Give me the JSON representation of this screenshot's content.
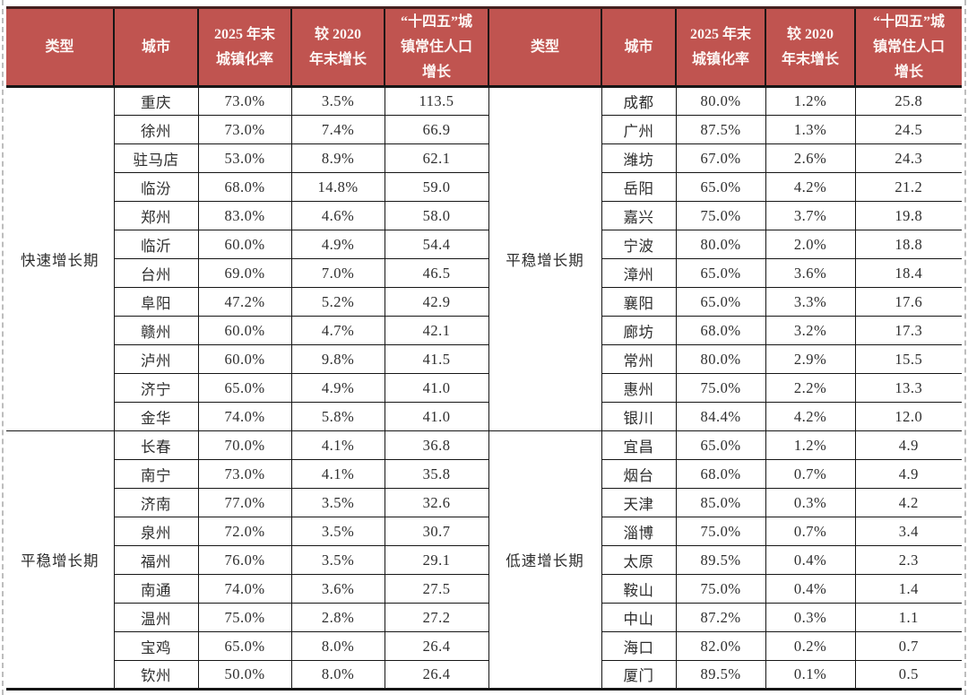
{
  "colors": {
    "header_bg": "#c05450",
    "header_text": "#fdf6f4",
    "border": "#161616",
    "top_rule": "#44201e",
    "body_text": "#2e2e2e",
    "dashed_edge": "#bdbdbd"
  },
  "header": {
    "columns": [
      "类型",
      "城市",
      "2025 年末\n城镇化率",
      "较 2020\n年末增长",
      "“十四五”城\n镇常住人口\n增长"
    ]
  },
  "tables": [
    {
      "side": "left",
      "groups": [
        {
          "type": "快速增长期",
          "rows": [
            [
              "重庆",
              "73.0%",
              "3.5%",
              "113.5"
            ],
            [
              "徐州",
              "73.0%",
              "7.4%",
              "66.9"
            ],
            [
              "驻马店",
              "53.0%",
              "8.9%",
              "62.1"
            ],
            [
              "临汾",
              "68.0%",
              "14.8%",
              "59.0"
            ],
            [
              "郑州",
              "83.0%",
              "4.6%",
              "58.0"
            ],
            [
              "临沂",
              "60.0%",
              "4.9%",
              "54.4"
            ],
            [
              "台州",
              "69.0%",
              "7.0%",
              "46.5"
            ],
            [
              "阜阳",
              "47.2%",
              "5.2%",
              "42.9"
            ],
            [
              "赣州",
              "60.0%",
              "4.7%",
              "42.1"
            ],
            [
              "泸州",
              "60.0%",
              "9.8%",
              "41.5"
            ],
            [
              "济宁",
              "65.0%",
              "4.9%",
              "41.0"
            ],
            [
              "金华",
              "74.0%",
              "5.8%",
              "41.0"
            ]
          ]
        },
        {
          "type": "平稳增长期",
          "rows": [
            [
              "长春",
              "70.0%",
              "4.1%",
              "36.8"
            ],
            [
              "南宁",
              "73.0%",
              "4.1%",
              "35.8"
            ],
            [
              "济南",
              "77.0%",
              "3.5%",
              "32.6"
            ],
            [
              "泉州",
              "72.0%",
              "3.5%",
              "30.7"
            ],
            [
              "福州",
              "76.0%",
              "3.5%",
              "29.1"
            ],
            [
              "南通",
              "74.0%",
              "3.6%",
              "27.5"
            ],
            [
              "温州",
              "75.0%",
              "2.8%",
              "27.2"
            ],
            [
              "宝鸡",
              "65.0%",
              "8.0%",
              "26.4"
            ],
            [
              "钦州",
              "50.0%",
              "8.0%",
              "26.4"
            ]
          ]
        }
      ]
    },
    {
      "side": "right",
      "groups": [
        {
          "type": "平稳增长期",
          "rows": [
            [
              "成都",
              "80.0%",
              "1.2%",
              "25.8"
            ],
            [
              "广州",
              "87.5%",
              "1.3%",
              "24.5"
            ],
            [
              "潍坊",
              "67.0%",
              "2.6%",
              "24.3"
            ],
            [
              "岳阳",
              "65.0%",
              "4.2%",
              "21.2"
            ],
            [
              "嘉兴",
              "75.0%",
              "3.7%",
              "19.8"
            ],
            [
              "宁波",
              "80.0%",
              "2.0%",
              "18.8"
            ],
            [
              "漳州",
              "65.0%",
              "3.6%",
              "18.4"
            ],
            [
              "襄阳",
              "65.0%",
              "3.3%",
              "17.6"
            ],
            [
              "廊坊",
              "68.0%",
              "3.2%",
              "17.3"
            ],
            [
              "常州",
              "80.0%",
              "2.9%",
              "15.5"
            ],
            [
              "惠州",
              "75.0%",
              "2.2%",
              "13.3"
            ],
            [
              "银川",
              "84.4%",
              "4.2%",
              "12.0"
            ]
          ]
        },
        {
          "type": "低速增长期",
          "rows": [
            [
              "宜昌",
              "65.0%",
              "1.2%",
              "4.9"
            ],
            [
              "烟台",
              "68.0%",
              "0.7%",
              "4.9"
            ],
            [
              "天津",
              "85.0%",
              "0.3%",
              "4.2"
            ],
            [
              "淄博",
              "75.0%",
              "0.7%",
              "3.4"
            ],
            [
              "太原",
              "89.5%",
              "0.4%",
              "2.3"
            ],
            [
              "鞍山",
              "75.0%",
              "0.4%",
              "1.4"
            ],
            [
              "中山",
              "87.2%",
              "0.3%",
              "1.1"
            ],
            [
              "海口",
              "82.0%",
              "0.2%",
              "0.7"
            ],
            [
              "厦门",
              "89.5%",
              "0.1%",
              "0.5"
            ]
          ]
        }
      ]
    }
  ]
}
